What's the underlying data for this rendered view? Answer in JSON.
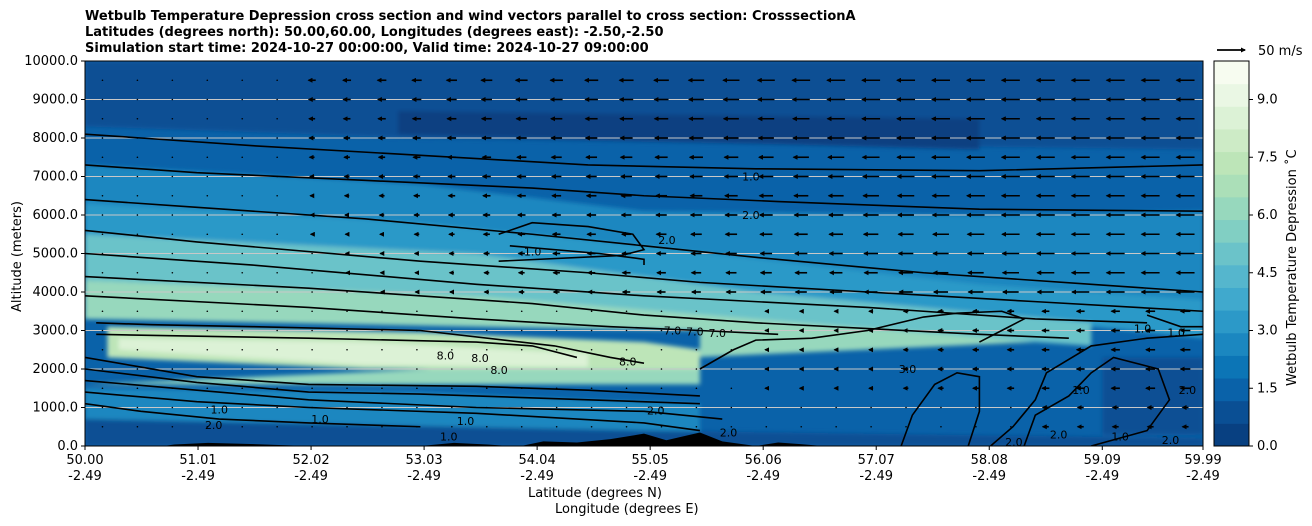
{
  "chart_data": {
    "type": "contourf",
    "title_lines": [
      "Wetbulb Temperature Depression cross section and wind vectors parallel to cross section: CrosssectionA",
      "Latitudes (degrees north): 50.00,60.00, Longitudes (degrees east): -2.50,-2.50",
      "Simulation start time: 2024-10-27 00:00:00, Valid time: 2024-10-27 09:00:00"
    ],
    "xlabel_line1": "Latitude (degrees N)",
    "xlabel_line2": "Longitude (degrees E)",
    "ylabel": "Altitude (meters)",
    "x_ticks_lat": [
      "50.00",
      "51.01",
      "52.02",
      "53.03",
      "54.04",
      "55.05",
      "56.06",
      "57.07",
      "58.08",
      "59.09",
      "59.99"
    ],
    "x_ticks_lon": [
      "-2.49",
      "-2.49",
      "-2.49",
      "-2.49",
      "-2.49",
      "-2.49",
      "-2.49",
      "-2.49",
      "-2.49",
      "-2.49",
      "-2.49"
    ],
    "x_range_lat": [
      50.0,
      59.99
    ],
    "y_ticks": [
      "0.0",
      "1000.0",
      "2000.0",
      "3000.0",
      "4000.0",
      "5000.0",
      "6000.0",
      "7000.0",
      "8000.0",
      "9000.0",
      "10000.0"
    ],
    "ylim": [
      0,
      10000
    ],
    "grid": "horizontal",
    "colorbar": {
      "label": "Wetbulb Temperature Depression ˚C",
      "ticks": [
        "0.0",
        "1.5",
        "3.0",
        "4.5",
        "6.0",
        "7.5",
        "9.0"
      ],
      "range": [
        0,
        10
      ],
      "colormap": "GnBu_r"
    },
    "quiver_key": {
      "label": "50 m/s",
      "value": 50
    },
    "contour_labels": [
      {
        "text": "1.0",
        "lat": 55.95,
        "z": 7000
      },
      {
        "text": "2.0",
        "lat": 55.95,
        "z": 6000
      },
      {
        "text": "1.0",
        "lat": 54.0,
        "z": 5050
      },
      {
        "text": "2.0",
        "lat": 55.2,
        "z": 5350
      },
      {
        "text": "7.0",
        "lat": 55.25,
        "z": 3000
      },
      {
        "text": "7.0",
        "lat": 55.45,
        "z": 2980
      },
      {
        "text": "7.0",
        "lat": 55.65,
        "z": 2940
      },
      {
        "text": "8.0",
        "lat": 53.22,
        "z": 2350
      },
      {
        "text": "8.0",
        "lat": 53.53,
        "z": 2280
      },
      {
        "text": "8.0",
        "lat": 53.7,
        "z": 1980
      },
      {
        "text": "8.0",
        "lat": 54.85,
        "z": 2200
      },
      {
        "text": "1.0",
        "lat": 51.2,
        "z": 950
      },
      {
        "text": "2.0",
        "lat": 51.15,
        "z": 550
      },
      {
        "text": "2.0",
        "lat": 55.1,
        "z": 920
      },
      {
        "text": "3.0",
        "lat": 57.35,
        "z": 2000
      },
      {
        "text": "1.0",
        "lat": 59.45,
        "z": 3050
      },
      {
        "text": "1.0",
        "lat": 59.75,
        "z": 2950
      },
      {
        "text": "1.0",
        "lat": 58.9,
        "z": 1450
      },
      {
        "text": "2.0",
        "lat": 59.85,
        "z": 1450
      },
      {
        "text": "2.0",
        "lat": 58.3,
        "z": 100
      },
      {
        "text": "2.0",
        "lat": 59.7,
        "z": 150
      },
      {
        "text": "2.0",
        "lat": 58.7,
        "z": 300
      },
      {
        "text": "1.0",
        "lat": 59.25,
        "z": 250
      },
      {
        "text": "1.0",
        "lat": 52.1,
        "z": 700
      },
      {
        "text": "2.0",
        "lat": 55.75,
        "z": 350
      },
      {
        "text": "1.0",
        "lat": 53.25,
        "z": 250
      },
      {
        "text": "1.0",
        "lat": 53.4,
        "z": 650
      }
    ],
    "colors": {
      "cmap": [
        "#084081",
        "#0a4f94",
        "#0a62a9",
        "#0c75b6",
        "#1b87c0",
        "#2c99c8",
        "#40a9cd",
        "#55b6cd",
        "#6bc3c9",
        "#81cfc3",
        "#97d8bd",
        "#abdfb8",
        "#bde5b8",
        "#cdebc6",
        "#dcf2d6",
        "#eaf7e4",
        "#f7fcf0"
      ],
      "contour_line": "#000000",
      "terrain": "#000000",
      "grid": "#c8c8c8"
    }
  }
}
